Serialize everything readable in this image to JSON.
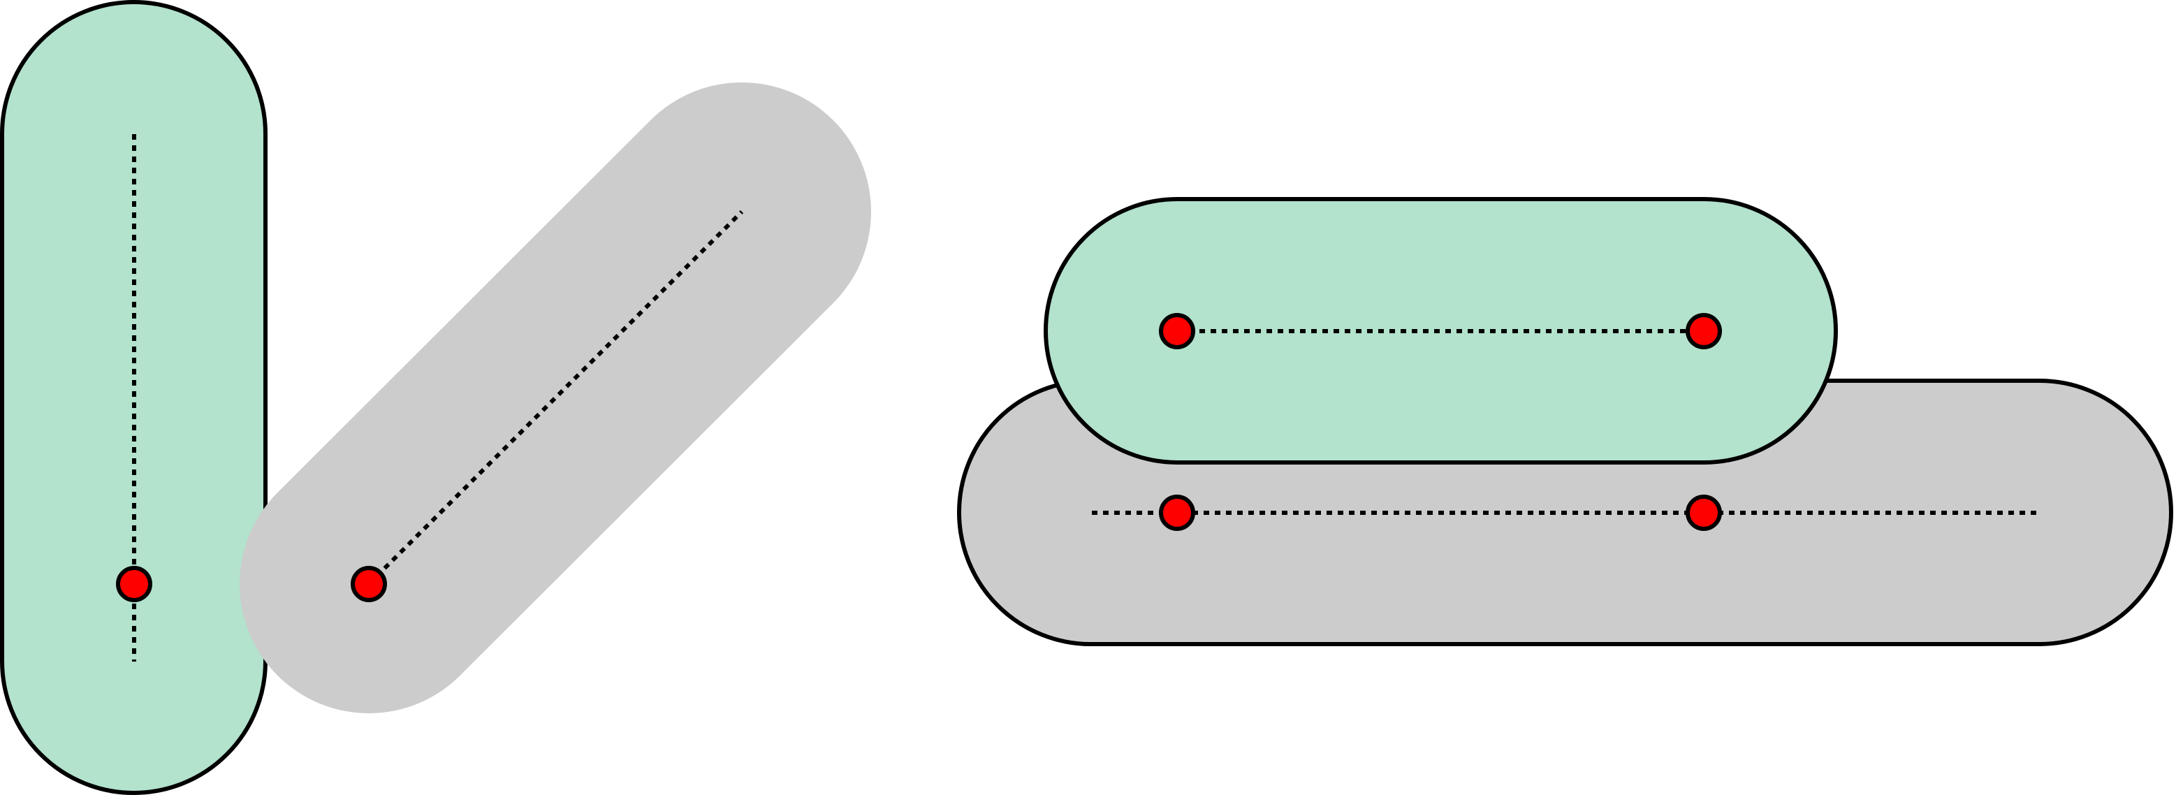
{
  "diagram": {
    "kind": "capsule-collision-illustration",
    "background_color": "#ffffff",
    "colors": {
      "capsule_green": "#b3e2cd",
      "capsule_gray": "#cccccc",
      "outline": "#000000",
      "contact_point": "#ff0000"
    },
    "scenes": [
      {
        "id": "rotated-pair",
        "capsules": [
          {
            "id": "vertical-green",
            "fill": "capsule_green"
          },
          {
            "id": "diagonal-gray",
            "fill": "capsule_gray"
          }
        ],
        "contact_point_count": 2
      },
      {
        "id": "parallel-pair",
        "capsules": [
          {
            "id": "horizontal-gray",
            "fill": "capsule_gray"
          },
          {
            "id": "horizontal-green",
            "fill": "capsule_green"
          }
        ],
        "contact_point_count": 4
      }
    ]
  }
}
